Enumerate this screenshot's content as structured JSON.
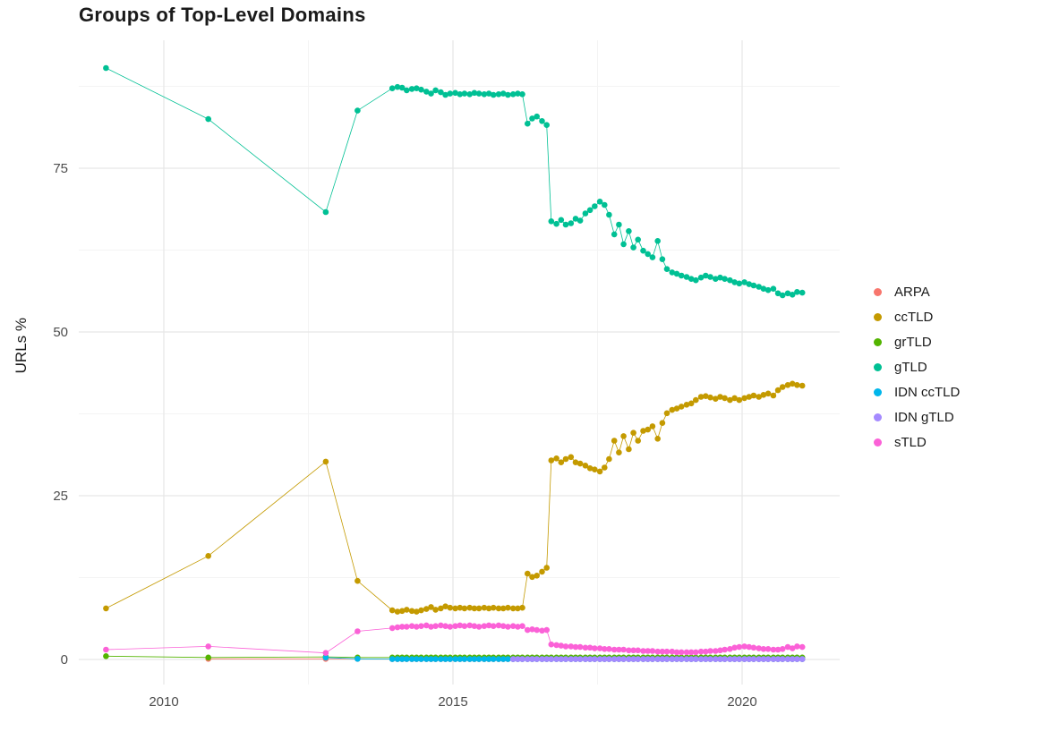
{
  "chart_data": {
    "type": "scatter",
    "title": "Groups of Top-Level Domains",
    "xlabel": "",
    "ylabel": "URLs %",
    "legend_position": "right",
    "grid": true,
    "grid_major_color": "#e7e7e7",
    "grid_minor_color": "#f4f4f4",
    "axis_text_color": "#4d4d4d",
    "xlim": [
      2008.5,
      2021.7
    ],
    "ylim": [
      -3.8,
      94.5
    ],
    "x_ticks": [
      2010,
      2015,
      2020
    ],
    "y_ticks": [
      0,
      25,
      50,
      75
    ],
    "x_minor_ticks": [
      2012.5,
      2017.5
    ],
    "y_minor_ticks": [
      12.5,
      37.5,
      62.5,
      87.5
    ],
    "x": [
      2009.0,
      2010.77,
      2012.8,
      2013.35,
      2013.95,
      2014.04,
      2014.12,
      2014.2,
      2014.29,
      2014.37,
      2014.45,
      2014.54,
      2014.62,
      2014.7,
      2014.79,
      2014.87,
      2014.95,
      2015.04,
      2015.12,
      2015.2,
      2015.29,
      2015.37,
      2015.45,
      2015.54,
      2015.62,
      2015.7,
      2015.79,
      2015.87,
      2015.95,
      2016.04,
      2016.12,
      2016.2,
      2016.29,
      2016.37,
      2016.45,
      2016.54,
      2016.62,
      2016.7,
      2016.79,
      2016.87,
      2016.95,
      2017.04,
      2017.12,
      2017.2,
      2017.29,
      2017.37,
      2017.45,
      2017.54,
      2017.62,
      2017.7,
      2017.79,
      2017.87,
      2017.95,
      2018.04,
      2018.12,
      2018.2,
      2018.29,
      2018.37,
      2018.45,
      2018.54,
      2018.62,
      2018.7,
      2018.79,
      2018.87,
      2018.95,
      2019.04,
      2019.12,
      2019.2,
      2019.29,
      2019.37,
      2019.45,
      2019.54,
      2019.62,
      2019.7,
      2019.79,
      2019.87,
      2019.95,
      2020.04,
      2020.12,
      2020.2,
      2020.29,
      2020.37,
      2020.45,
      2020.54,
      2020.62,
      2020.7,
      2020.79,
      2020.87,
      2020.95,
      2021.04
    ],
    "series": [
      {
        "name": "ARPA",
        "color": "#F8766D",
        "values": [
          null,
          0.1,
          0.1,
          0.1,
          0.05,
          0.05,
          0.05,
          0.05,
          0.05,
          0.05,
          0.05,
          0.05,
          0.05,
          0.05,
          0.05,
          0.05,
          0.05,
          0.05,
          0.05,
          0.05,
          0.05,
          0.05,
          0.05,
          0.05,
          0.05,
          0.05,
          0.05,
          0.05,
          0.05,
          0.05,
          0.05,
          0.05,
          0.05,
          0.05,
          0.05,
          0.05,
          0.05,
          0.05,
          0.05,
          0.05,
          0.05,
          0.05,
          0.05,
          0.05,
          0.05,
          0.05,
          0.05,
          0.05,
          0.05,
          0.05,
          0.05,
          0.05,
          0.05,
          0.05,
          0.05,
          0.05,
          0.05,
          0.05,
          0.05,
          0.05,
          0.05,
          0.05,
          0.05,
          0.05,
          0.05,
          0.05,
          0.05,
          0.05,
          0.05,
          0.05,
          0.05,
          0.05,
          0.05,
          0.05,
          0.05,
          0.05,
          0.05,
          0.05,
          0.05,
          0.05,
          0.05,
          0.05,
          0.05,
          0.05,
          0.05,
          0.05,
          0.05,
          0.05,
          0.05,
          0.05
        ]
      },
      {
        "name": "ccTLD",
        "color": "#C49A00",
        "values": [
          7.8,
          15.8,
          30.2,
          12.0,
          7.5,
          7.3,
          7.4,
          7.6,
          7.4,
          7.3,
          7.5,
          7.7,
          8.0,
          7.6,
          7.8,
          8.1,
          7.9,
          7.8,
          7.9,
          7.8,
          7.9,
          7.8,
          7.8,
          7.9,
          7.8,
          7.9,
          7.8,
          7.8,
          7.9,
          7.8,
          7.8,
          7.9,
          13.1,
          12.6,
          12.8,
          13.4,
          14.0,
          30.4,
          30.7,
          30.1,
          30.6,
          30.9,
          30.1,
          29.9,
          29.6,
          29.2,
          29.0,
          28.7,
          29.3,
          30.6,
          33.4,
          31.6,
          34.1,
          32.1,
          34.6,
          33.4,
          34.9,
          35.1,
          35.6,
          33.7,
          36.1,
          37.6,
          38.1,
          38.3,
          38.6,
          38.9,
          39.1,
          39.6,
          40.1,
          40.2,
          40.0,
          39.8,
          40.1,
          39.9,
          39.6,
          39.9,
          39.6,
          39.9,
          40.1,
          40.3,
          40.1,
          40.4,
          40.6,
          40.3,
          41.1,
          41.6,
          41.9,
          42.1,
          41.9,
          41.8
        ]
      },
      {
        "name": "grTLD",
        "color": "#53B400",
        "values": [
          0.5,
          0.3,
          0.4,
          0.3,
          0.3,
          0.3,
          0.3,
          0.3,
          0.3,
          0.3,
          0.3,
          0.3,
          0.3,
          0.3,
          0.3,
          0.3,
          0.3,
          0.3,
          0.3,
          0.3,
          0.3,
          0.3,
          0.3,
          0.3,
          0.3,
          0.3,
          0.3,
          0.3,
          0.3,
          0.3,
          0.3,
          0.3,
          0.3,
          0.3,
          0.3,
          0.3,
          0.3,
          0.3,
          0.3,
          0.3,
          0.3,
          0.3,
          0.3,
          0.3,
          0.3,
          0.3,
          0.3,
          0.3,
          0.3,
          0.3,
          0.3,
          0.3,
          0.3,
          0.3,
          0.3,
          0.3,
          0.3,
          0.3,
          0.3,
          0.3,
          0.3,
          0.3,
          0.3,
          0.3,
          0.3,
          0.3,
          0.3,
          0.3,
          0.3,
          0.3,
          0.3,
          0.3,
          0.3,
          0.3,
          0.3,
          0.3,
          0.3,
          0.3,
          0.3,
          0.3,
          0.3,
          0.3,
          0.3,
          0.3,
          0.3,
          0.3,
          0.3,
          0.3,
          0.3,
          0.3
        ]
      },
      {
        "name": "gTLD",
        "color": "#00C094",
        "values": [
          90.3,
          82.5,
          68.3,
          83.8,
          87.2,
          87.4,
          87.3,
          86.9,
          87.1,
          87.2,
          87.0,
          86.7,
          86.4,
          86.9,
          86.6,
          86.2,
          86.4,
          86.5,
          86.3,
          86.4,
          86.3,
          86.5,
          86.4,
          86.3,
          86.4,
          86.2,
          86.3,
          86.4,
          86.2,
          86.3,
          86.4,
          86.3,
          81.8,
          82.6,
          82.9,
          82.2,
          81.6,
          66.9,
          66.5,
          67.1,
          66.4,
          66.6,
          67.3,
          67.0,
          68.1,
          68.6,
          69.2,
          69.9,
          69.4,
          67.9,
          64.9,
          66.4,
          63.4,
          65.4,
          62.9,
          64.1,
          62.4,
          61.9,
          61.4,
          63.9,
          61.1,
          59.6,
          59.1,
          58.9,
          58.6,
          58.4,
          58.1,
          57.9,
          58.3,
          58.6,
          58.4,
          58.1,
          58.3,
          58.1,
          57.9,
          57.6,
          57.4,
          57.6,
          57.3,
          57.1,
          56.9,
          56.6,
          56.4,
          56.6,
          55.9,
          55.6,
          55.9,
          55.7,
          56.1,
          56.0
        ]
      },
      {
        "name": "IDN ccTLD",
        "color": "#00B6EB",
        "values": [
          null,
          null,
          0.3,
          0.1,
          0.05,
          0.05,
          0.05,
          0.05,
          0.05,
          0.05,
          0.05,
          0.05,
          0.05,
          0.05,
          0.05,
          0.05,
          0.05,
          0.05,
          0.05,
          0.05,
          0.05,
          0.05,
          0.05,
          0.05,
          0.05,
          0.05,
          0.05,
          0.05,
          0.05,
          0.05,
          0.05,
          0.05,
          0.05,
          0.05,
          0.05,
          0.05,
          0.05,
          0.05,
          0.05,
          0.05,
          0.05,
          0.05,
          0.05,
          0.05,
          0.05,
          0.05,
          0.05,
          0.05,
          0.05,
          0.05,
          0.05,
          0.05,
          0.05,
          0.05,
          0.05,
          0.05,
          0.05,
          0.05,
          0.05,
          0.05,
          0.05,
          0.05,
          0.05,
          0.05,
          0.05,
          0.05,
          0.05,
          0.05,
          0.05,
          0.05,
          0.05,
          0.05,
          0.05,
          0.05,
          0.05,
          0.05,
          0.05,
          0.05,
          0.05,
          0.05,
          0.05,
          0.05,
          0.05,
          0.05,
          0.05,
          0.05,
          0.05,
          0.05,
          0.05,
          0.05
        ]
      },
      {
        "name": "IDN gTLD",
        "color": "#A58AFF",
        "values": [
          null,
          null,
          null,
          null,
          null,
          null,
          null,
          null,
          null,
          null,
          null,
          null,
          null,
          null,
          null,
          null,
          null,
          null,
          null,
          null,
          null,
          null,
          null,
          null,
          null,
          null,
          null,
          null,
          null,
          0.05,
          0.05,
          0.05,
          0.05,
          0.05,
          0.05,
          0.05,
          0.05,
          0.05,
          0.05,
          0.05,
          0.05,
          0.05,
          0.05,
          0.05,
          0.05,
          0.05,
          0.05,
          0.05,
          0.05,
          0.05,
          0.05,
          0.05,
          0.05,
          0.05,
          0.05,
          0.05,
          0.05,
          0.05,
          0.05,
          0.05,
          0.05,
          0.05,
          0.05,
          0.05,
          0.05,
          0.05,
          0.05,
          0.05,
          0.05,
          0.05,
          0.05,
          0.05,
          0.05,
          0.05,
          0.05,
          0.05,
          0.05,
          0.05,
          0.05,
          0.05,
          0.05,
          0.05,
          0.05,
          0.05,
          0.05,
          0.05,
          0.05,
          0.05,
          0.05,
          0.05
        ]
      },
      {
        "name": "sTLD",
        "color": "#FB61D7",
        "values": [
          1.5,
          2.0,
          1.0,
          4.3,
          4.8,
          4.9,
          5.0,
          5.0,
          5.1,
          5.0,
          5.1,
          5.2,
          5.0,
          5.1,
          5.2,
          5.1,
          5.0,
          5.1,
          5.2,
          5.1,
          5.2,
          5.1,
          5.0,
          5.1,
          5.2,
          5.1,
          5.2,
          5.1,
          5.0,
          5.1,
          5.0,
          5.1,
          4.5,
          4.6,
          4.5,
          4.4,
          4.5,
          2.3,
          2.2,
          2.1,
          2.0,
          2.0,
          1.9,
          1.9,
          1.8,
          1.8,
          1.7,
          1.7,
          1.6,
          1.6,
          1.5,
          1.5,
          1.5,
          1.4,
          1.4,
          1.4,
          1.3,
          1.3,
          1.3,
          1.2,
          1.2,
          1.2,
          1.2,
          1.1,
          1.1,
          1.1,
          1.1,
          1.1,
          1.2,
          1.2,
          1.3,
          1.3,
          1.4,
          1.5,
          1.6,
          1.8,
          1.9,
          2.0,
          1.9,
          1.8,
          1.7,
          1.6,
          1.6,
          1.5,
          1.5,
          1.6,
          1.9,
          1.7,
          2.0,
          1.9
        ]
      }
    ]
  }
}
